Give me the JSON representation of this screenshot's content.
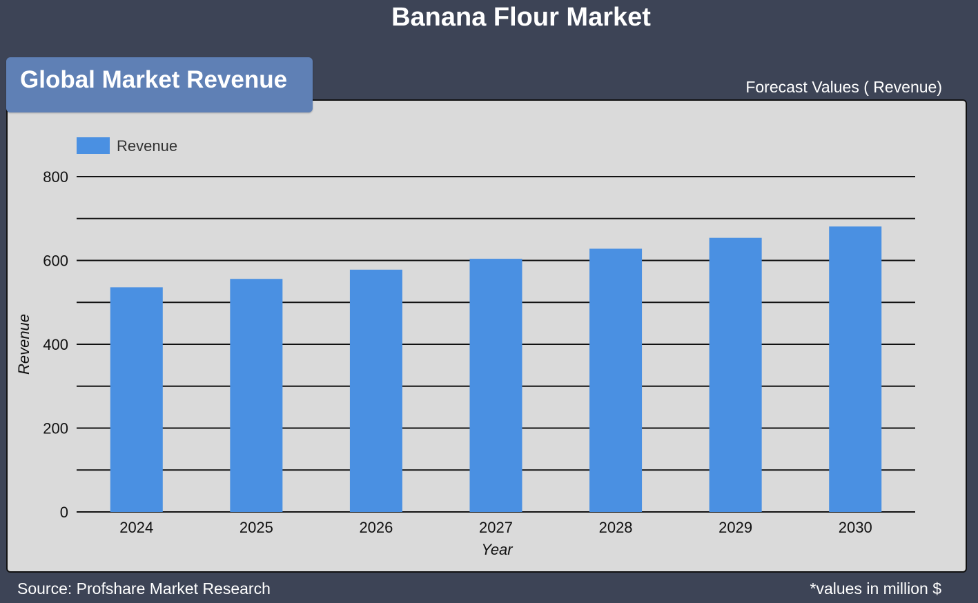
{
  "header": {
    "title": "Banana Flour Market",
    "tag": "Global Market Revenue",
    "forecast_label": "Forecast Values ( Revenue)"
  },
  "footer": {
    "source": "Source: Profshare Market Research",
    "note": "*values in million $"
  },
  "colors": {
    "background": "#3d4456",
    "panel": "#dadada",
    "tag": "#5f80b5",
    "bar": "#4a90e2"
  },
  "chart_data": {
    "type": "bar",
    "title": "",
    "xlabel": "Year",
    "ylabel": "Revenue",
    "categories": [
      "2024",
      "2025",
      "2026",
      "2027",
      "2028",
      "2029",
      "2030"
    ],
    "series": [
      {
        "name": "Revenue",
        "values": [
          536,
          556,
          578,
          604,
          628,
          654,
          681
        ]
      }
    ],
    "ylim": [
      0,
      800
    ],
    "yticks": [
      0,
      200,
      400,
      600,
      800
    ],
    "grid": true,
    "legend": "top-left"
  }
}
